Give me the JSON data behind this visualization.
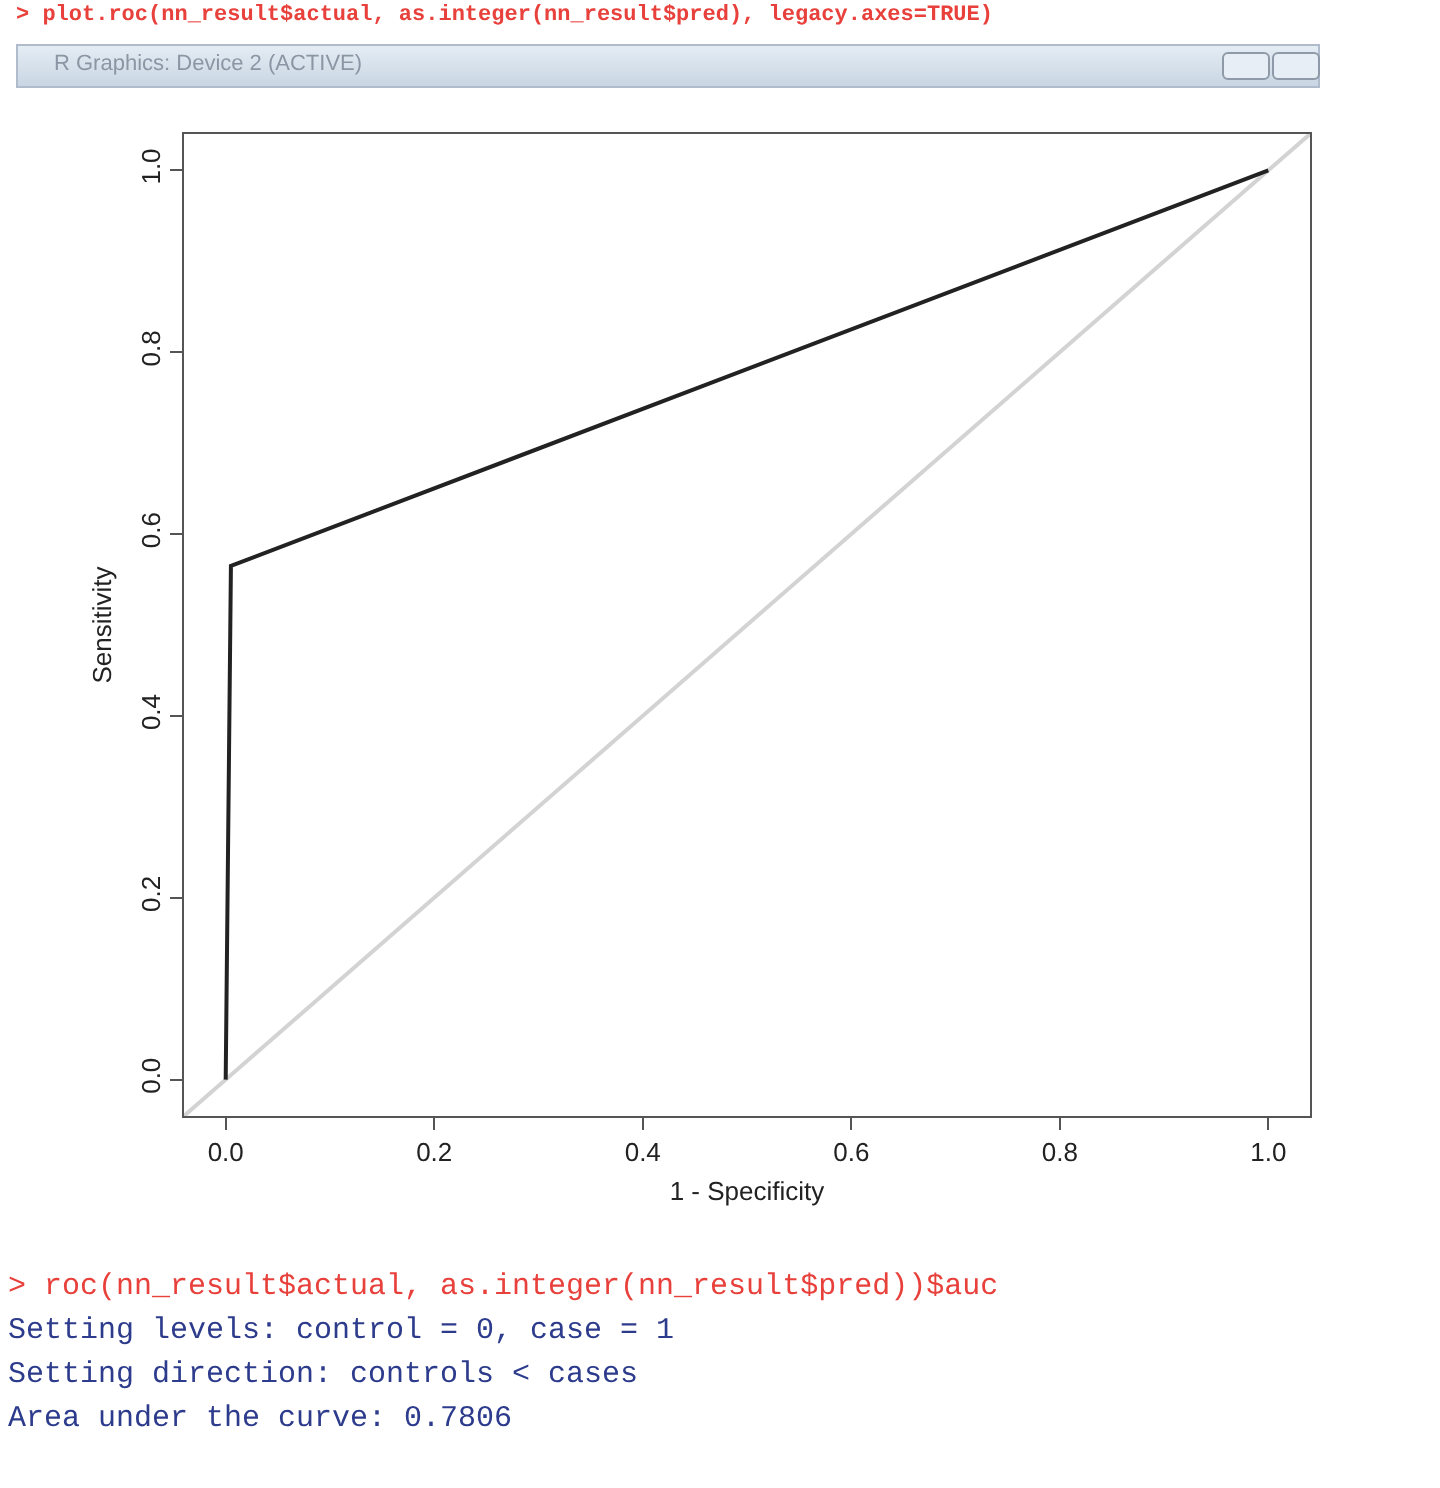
{
  "chart_data": {
    "type": "line",
    "xlabel": "1 - Specificity",
    "ylabel": "Sensitivity",
    "annotations": [
      "> plot.roc(nn_result$actual, as.integer(nn_result$pred), legacy.axes=TRUE)",
      "R Graphics: Device 2 (ACTIVE)",
      "> roc(nn_result$actual, as.integer(nn_result$pred))$auc",
      "Setting levels: control = 0, case = 1",
      "Setting direction: controls < cases",
      "Area under the curve: 0.7806"
    ],
    "series": [
      {
        "color": "#222222",
        "x": [
          0,
          0.005,
          1
        ],
        "values": [
          0,
          0.565,
          1
        ]
      },
      {
        "color": "#d3d3d3",
        "x": [
          -0.04,
          1.04
        ],
        "values": [
          -0.04,
          1.04
        ]
      }
    ],
    "xlim": [
      -0.04,
      1.04
    ],
    "ylim": [
      -0.04,
      1.04
    ],
    "xticks": [
      {
        "value": 0,
        "label": "0.0"
      },
      0.2,
      0.4,
      0.6,
      0.8,
      {
        "value": 1,
        "label": "1.0"
      }
    ],
    "yticks": [
      {
        "value": 0,
        "label": "0.0"
      },
      0.2,
      0.4,
      0.6,
      0.8,
      {
        "value": 1,
        "label": "1.0"
      }
    ],
    "grid": false,
    "marker": "none",
    "line_style": "solid"
  }
}
